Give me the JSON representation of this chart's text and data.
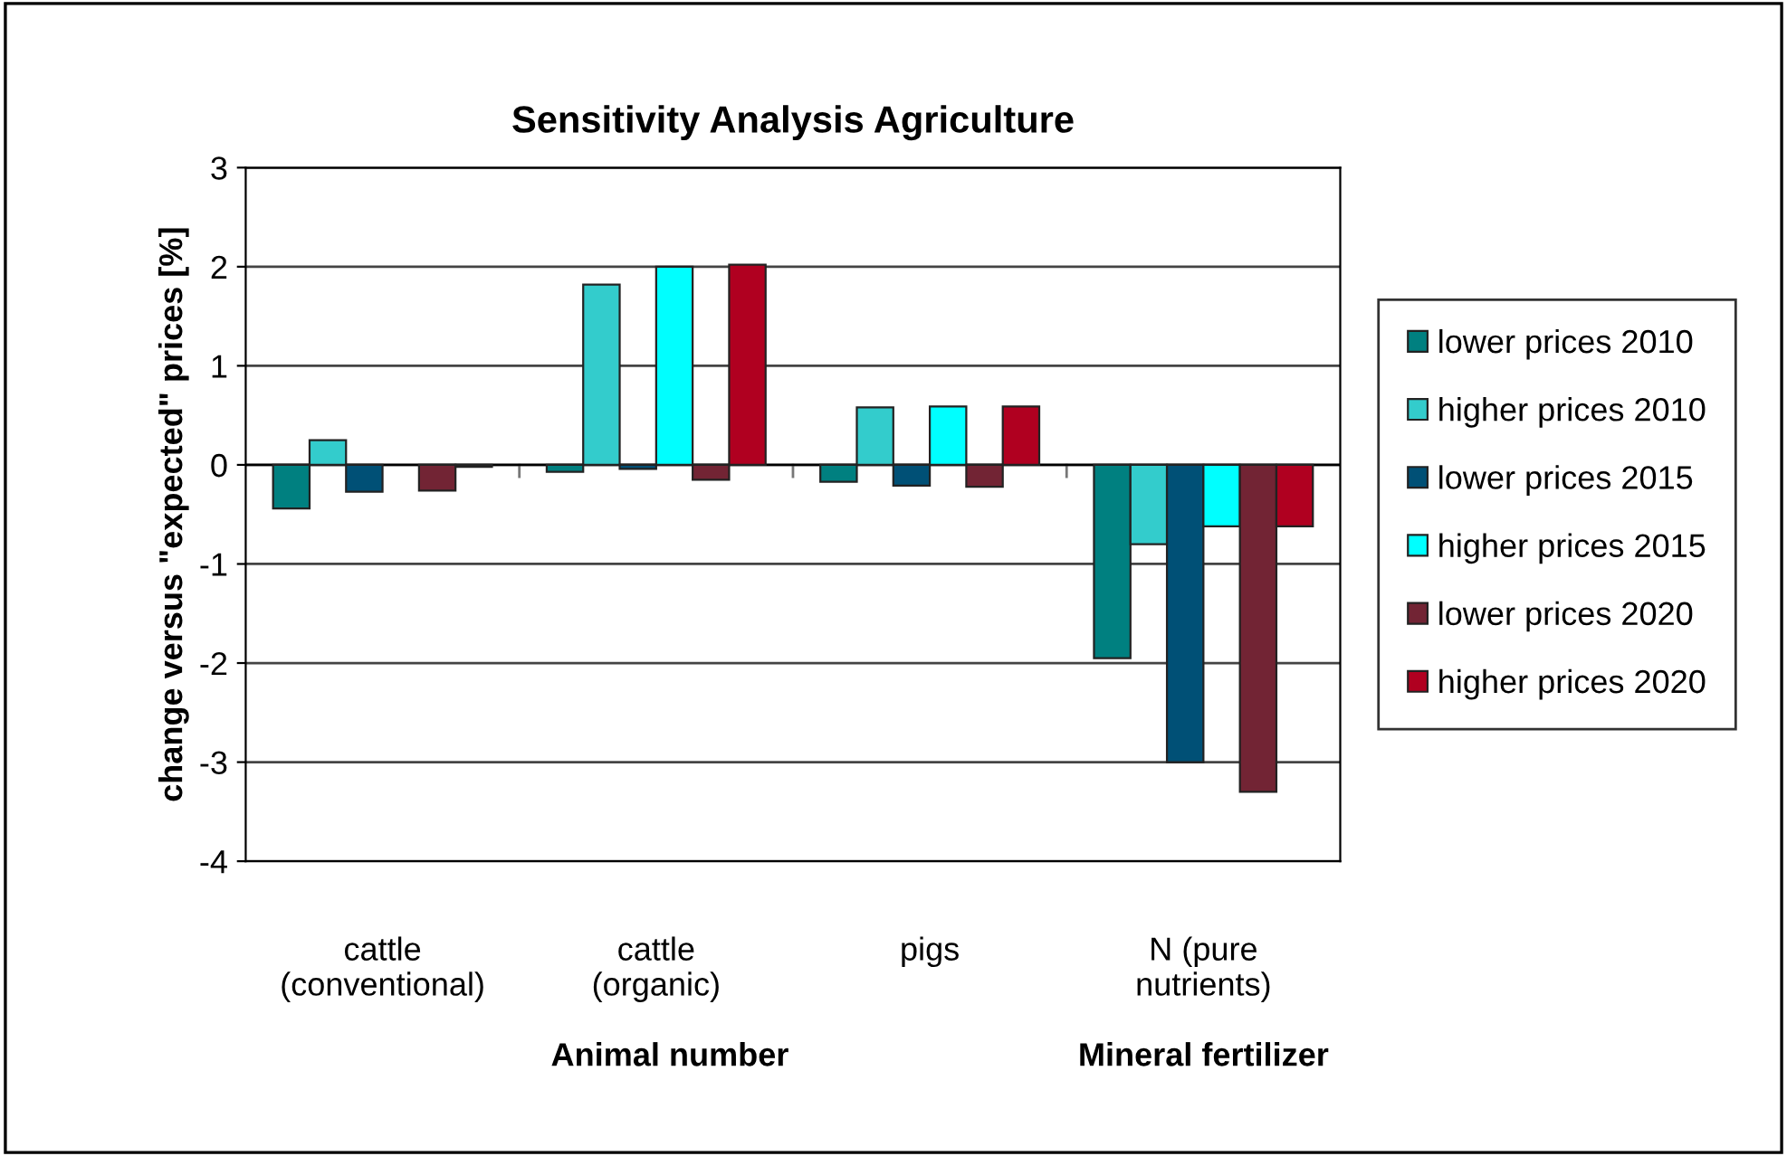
{
  "chart_data": {
    "type": "bar",
    "title": "Sensitivity Analysis Agriculture",
    "ylabel": "change versus \"expected\" prices [%]",
    "categories": [
      "cattle\n(conventional)",
      "cattle\n(organic)",
      "pigs",
      "N (pure\nnutrients)"
    ],
    "series": [
      {
        "name": "lower prices 2010",
        "color": "#008080",
        "values": [
          -0.44,
          -0.07,
          -0.17,
          -1.95
        ]
      },
      {
        "name": "higher prices 2010",
        "color": "#33cccc",
        "values": [
          0.25,
          1.82,
          0.58,
          -0.8
        ]
      },
      {
        "name": "lower prices 2015",
        "color": "#005076",
        "values": [
          -0.27,
          -0.04,
          -0.21,
          -3.0
        ]
      },
      {
        "name": "higher prices 2015",
        "color": "#00ffff",
        "values": [
          null,
          2.0,
          0.59,
          -0.62
        ]
      },
      {
        "name": "lower prices 2020",
        "color": "#722434",
        "values": [
          -0.26,
          -0.15,
          -0.22,
          -3.3
        ]
      },
      {
        "name": "higher prices 2020",
        "color": "#b00020",
        "values": [
          -0.02,
          2.02,
          0.59,
          -0.62
        ]
      }
    ],
    "annotations": [
      "Animal number",
      "Mineral fertilizer"
    ],
    "ylim": [
      -4,
      3
    ],
    "yticks": [
      -4,
      -3,
      -2,
      -1,
      0,
      1,
      2,
      3
    ],
    "grid": "y",
    "legend": "right"
  }
}
